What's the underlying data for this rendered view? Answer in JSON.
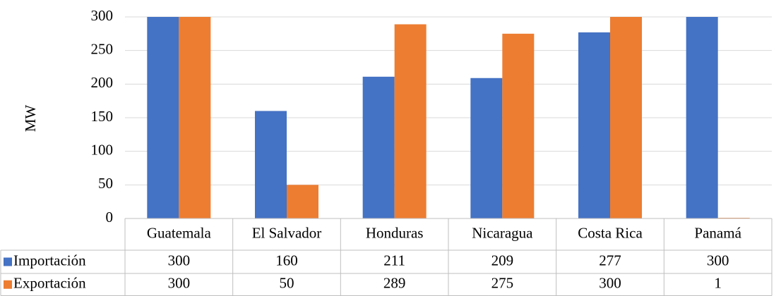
{
  "chart_data": {
    "type": "bar",
    "y_label": "MW",
    "categories": [
      "Guatemala",
      "El Salvador",
      "Honduras",
      "Nicaragua",
      "Costa Rica",
      "Panamá"
    ],
    "series": [
      {
        "name": "Importación",
        "color": "#4472c4",
        "values": [
          300,
          160,
          211,
          209,
          277,
          300
        ]
      },
      {
        "name": "Exportación",
        "color": "#ed7d31",
        "values": [
          300,
          50,
          289,
          275,
          300,
          1
        ]
      }
    ],
    "ylim": [
      0,
      300
    ],
    "yticks": [
      0,
      50,
      100,
      150,
      200,
      250,
      300
    ],
    "grid": true
  }
}
